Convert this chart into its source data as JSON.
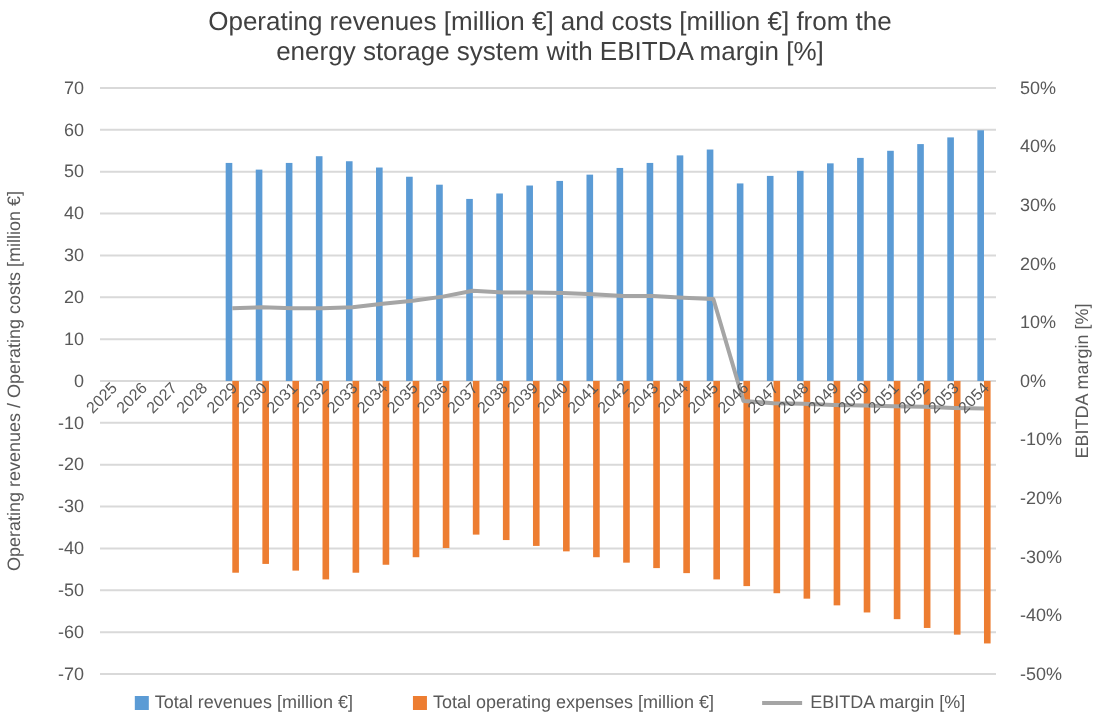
{
  "chart_data": {
    "type": "bar",
    "title": "Operating revenues [million €] and costs [million €] from the energy storage system with EBITDA margin [%]",
    "ylabel": "Operating revenues / Operating costs [million €]",
    "y2label": "EBITDA margin [%]",
    "categories": [
      "2025",
      "2026",
      "2027",
      "2028",
      "2029",
      "2030",
      "2031",
      "2032",
      "2033",
      "2034",
      "2035",
      "2036",
      "2037",
      "2038",
      "2039",
      "2040",
      "2041",
      "2042",
      "2043",
      "2044",
      "2045",
      "2046",
      "2047",
      "2048",
      "2049",
      "2050",
      "2051",
      "2052",
      "2053",
      "2054"
    ],
    "series": [
      {
        "name": "Total revenues [million €]",
        "color": "#5b9bd5",
        "values": [
          null,
          null,
          null,
          null,
          52.1,
          50.5,
          52.1,
          53.7,
          52.5,
          51,
          48.8,
          46.9,
          43.5,
          44.8,
          46.7,
          47.8,
          49.3,
          50.9,
          52.1,
          53.9,
          55.3,
          47.2,
          49,
          50.2,
          52,
          53.3,
          55,
          56.6,
          58.2,
          59.9
        ]
      },
      {
        "name": "Total operating expenses [million €]",
        "color": "#ed7d31",
        "values": [
          null,
          null,
          null,
          null,
          -45.8,
          -43.7,
          -45.3,
          -47.4,
          -45.8,
          -43.9,
          -42.1,
          -39.9,
          -36.7,
          -38,
          -39.4,
          -40.7,
          -42.1,
          -43.4,
          -44.7,
          -45.9,
          -47.4,
          -49,
          -50.7,
          -52,
          -53.6,
          -55.3,
          -56.9,
          -59,
          -60.6,
          -62.7
        ]
      },
      {
        "name": "EBITDA margin [%]",
        "type": "line",
        "axis": "y2",
        "color": "#a5a5a5",
        "values": [
          null,
          null,
          null,
          null,
          12.4,
          12.6,
          12.4,
          12.4,
          12.6,
          13.2,
          13.7,
          14.4,
          15.4,
          15.1,
          15.1,
          15,
          14.8,
          14.5,
          14.5,
          14.2,
          14,
          -3.4,
          -3.8,
          -3.9,
          -4.1,
          -4.2,
          -4.3,
          -4.4,
          -4.6,
          -4.7
        ]
      }
    ],
    "ylim": [
      -70,
      70
    ],
    "yticks": [
      -70,
      -60,
      -50,
      -40,
      -30,
      -20,
      -10,
      0,
      10,
      20,
      30,
      40,
      50,
      60,
      70
    ],
    "y2lim": [
      -50,
      50
    ],
    "y2ticks": [
      {
        "value": -50,
        "label": "-50%"
      },
      {
        "value": -40,
        "label": "-40%"
      },
      {
        "value": -30,
        "label": "-30%"
      },
      {
        "value": -20,
        "label": "-20%"
      },
      {
        "value": -10,
        "label": "-10%"
      },
      {
        "value": 0,
        "label": "0%"
      },
      {
        "value": 10,
        "label": "10%"
      },
      {
        "value": 20,
        "label": "20%"
      },
      {
        "value": 30,
        "label": "30%"
      },
      {
        "value": 40,
        "label": "40%"
      },
      {
        "value": 50,
        "label": "50%"
      }
    ],
    "grid": "y",
    "legend": "bottom",
    "marker": "none",
    "line_style": "solid"
  }
}
